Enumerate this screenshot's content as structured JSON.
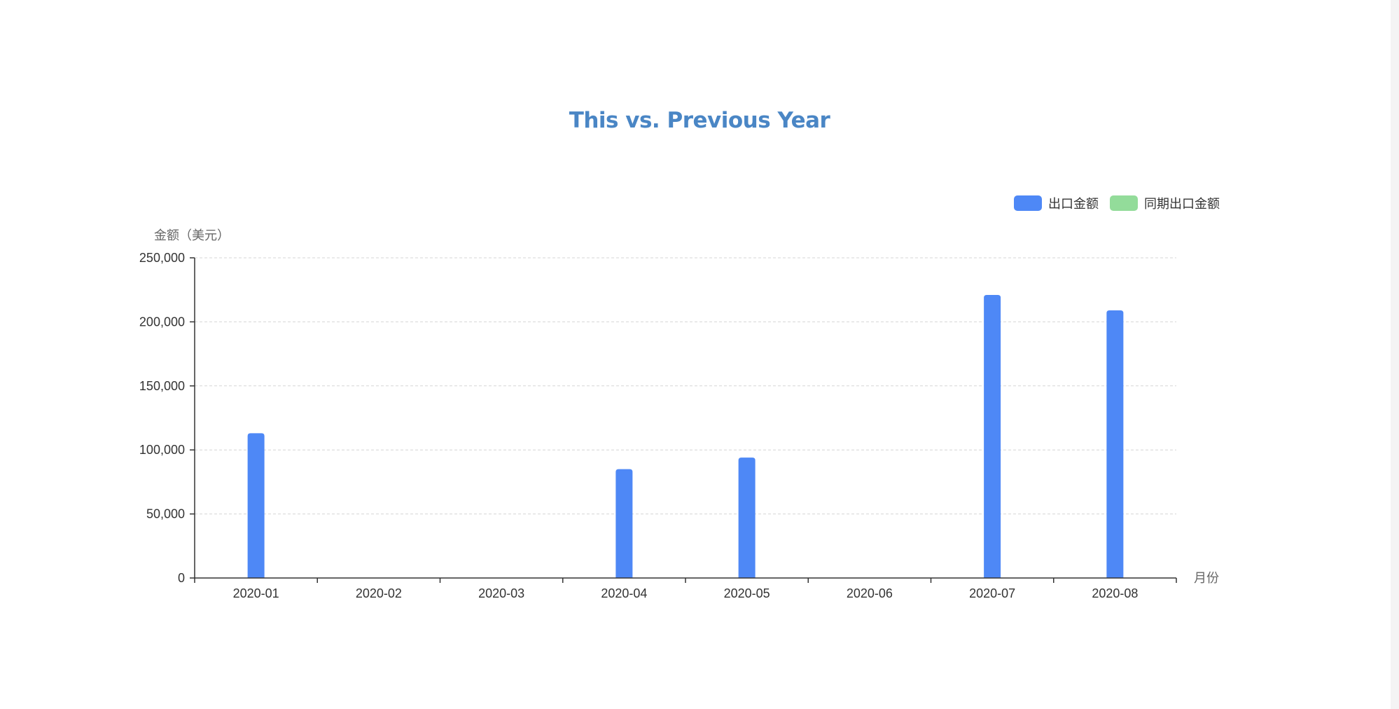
{
  "chart_data": {
    "type": "bar",
    "title": "This vs. Previous Year",
    "ylabel": "金额（美元）",
    "xlabel": "月份",
    "categories": [
      "2020-01",
      "2020-02",
      "2020-03",
      "2020-04",
      "2020-05",
      "2020-06",
      "2020-07",
      "2020-08"
    ],
    "series": [
      {
        "name": "出口金额",
        "color": "#4e88f6",
        "values": [
          113000,
          0,
          0,
          85000,
          94000,
          0,
          221000,
          209000
        ]
      },
      {
        "name": "同期出口金额",
        "color": "#93dc9a",
        "values": [
          0,
          0,
          0,
          0,
          0,
          0,
          0,
          0
        ]
      }
    ],
    "ylim": [
      0,
      250000
    ],
    "yticks": [
      0,
      50000,
      100000,
      150000,
      200000,
      250000
    ],
    "ytick_labels": [
      "0",
      "50,000",
      "100,000",
      "150,000",
      "200,000",
      "250,000"
    ],
    "grid": true,
    "legend_position": "top-right"
  }
}
